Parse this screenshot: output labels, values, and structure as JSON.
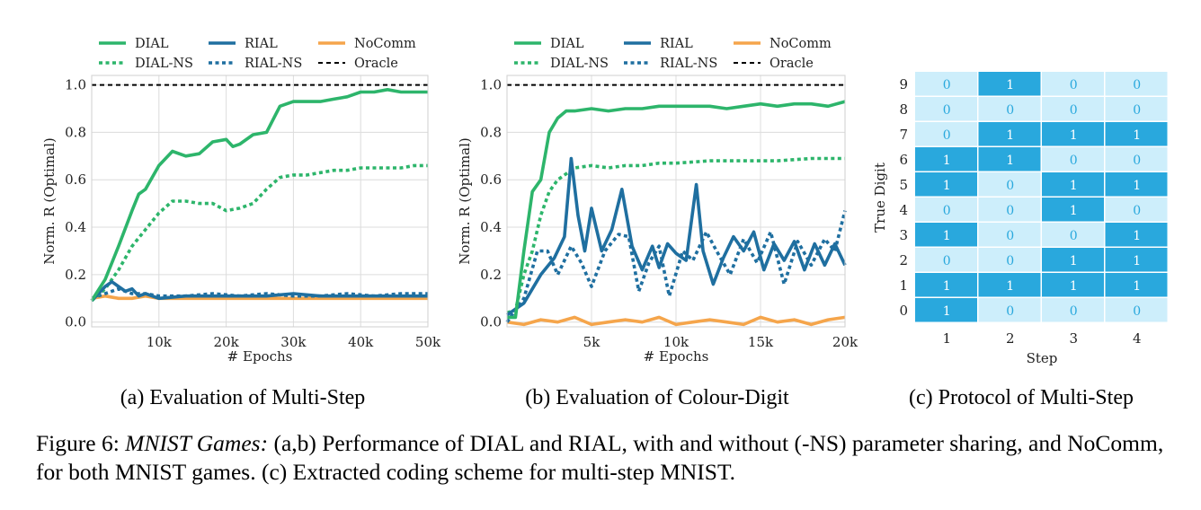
{
  "figure": {
    "caption_label": "Figure 6:",
    "caption_title": "MNIST Games:",
    "caption_body": " (a,b) Performance of DIAL and RIAL, with and without (-NS) parameter sharing, and NoComm, for both MNIST games. (c) Extracted coding scheme for multi-step MNIST."
  },
  "colors": {
    "DIAL": "#2db56b",
    "RIAL": "#1f6fa0",
    "NoComm": "#f5a54b",
    "Oracle": "#000000",
    "grid": "#dcdcdc",
    "heat_on": "#29a8dd",
    "heat_off": "#cdeefb",
    "text_on": "#ffffff",
    "text_off": "#29a8dd"
  },
  "chart_data": [
    {
      "type": "line",
      "subtitle": "(a) Evaluation of Multi-Step",
      "xlabel": "# Epochs",
      "ylabel": "Norm. R (Optimal)",
      "xlim": [
        0,
        50000
      ],
      "ylim": [
        -0.02,
        1.04
      ],
      "xticks": [
        10000,
        20000,
        30000,
        40000,
        50000
      ],
      "xtick_labels": [
        "10k",
        "20k",
        "30k",
        "40k",
        "50k"
      ],
      "yticks": [
        0.0,
        0.2,
        0.4,
        0.6,
        0.8,
        1.0
      ],
      "ytick_labels": [
        "0.0",
        "0.2",
        "0.4",
        "0.6",
        "0.8",
        "1.0"
      ],
      "grid": true,
      "legend": [
        "DIAL",
        "RIAL",
        "NoComm",
        "DIAL-NS",
        "RIAL-NS",
        "Oracle"
      ],
      "series": [
        {
          "name": "DIAL",
          "style": "solid",
          "color": "DIAL",
          "x": [
            0,
            2000,
            4000,
            6000,
            7000,
            8000,
            10000,
            12000,
            14000,
            16000,
            18000,
            20000,
            21000,
            22000,
            24000,
            26000,
            28000,
            30000,
            32000,
            34000,
            36000,
            38000,
            40000,
            42000,
            44000,
            46000,
            48000,
            50000
          ],
          "y": [
            0.09,
            0.18,
            0.32,
            0.47,
            0.54,
            0.56,
            0.66,
            0.72,
            0.7,
            0.71,
            0.76,
            0.77,
            0.74,
            0.75,
            0.79,
            0.8,
            0.91,
            0.93,
            0.93,
            0.93,
            0.94,
            0.95,
            0.97,
            0.97,
            0.98,
            0.97,
            0.97,
            0.97
          ]
        },
        {
          "name": "DIAL-NS",
          "style": "dotted",
          "color": "DIAL",
          "x": [
            0,
            2000,
            4000,
            6000,
            8000,
            10000,
            12000,
            14000,
            16000,
            18000,
            20000,
            22000,
            24000,
            26000,
            28000,
            30000,
            32000,
            34000,
            36000,
            38000,
            40000,
            42000,
            44000,
            46000,
            48000,
            50000
          ],
          "y": [
            0.09,
            0.14,
            0.22,
            0.32,
            0.39,
            0.46,
            0.51,
            0.51,
            0.5,
            0.5,
            0.47,
            0.48,
            0.5,
            0.56,
            0.61,
            0.62,
            0.62,
            0.63,
            0.64,
            0.64,
            0.65,
            0.65,
            0.65,
            0.65,
            0.66,
            0.66
          ]
        },
        {
          "name": "RIAL",
          "style": "solid",
          "color": "RIAL",
          "x": [
            0,
            2000,
            3000,
            4000,
            5000,
            6000,
            7000,
            8000,
            10000,
            14000,
            18000,
            22000,
            26000,
            30000,
            34000,
            38000,
            42000,
            46000,
            50000
          ],
          "y": [
            0.09,
            0.15,
            0.17,
            0.15,
            0.13,
            0.14,
            0.11,
            0.12,
            0.1,
            0.11,
            0.11,
            0.11,
            0.11,
            0.12,
            0.11,
            0.11,
            0.11,
            0.11,
            0.11
          ]
        },
        {
          "name": "RIAL-NS",
          "style": "dotted",
          "color": "RIAL",
          "x": [
            0,
            2000,
            4000,
            6000,
            8000,
            10000,
            14000,
            18000,
            22000,
            26000,
            30000,
            34000,
            38000,
            42000,
            46000,
            50000
          ],
          "y": [
            0.1,
            0.12,
            0.14,
            0.12,
            0.12,
            0.11,
            0.11,
            0.12,
            0.11,
            0.12,
            0.11,
            0.11,
            0.12,
            0.11,
            0.12,
            0.12
          ]
        },
        {
          "name": "NoComm",
          "style": "solid",
          "color": "NoComm",
          "x": [
            0,
            2000,
            4000,
            6000,
            8000,
            10000,
            14000,
            18000,
            22000,
            26000,
            30000,
            34000,
            38000,
            42000,
            46000,
            50000
          ],
          "y": [
            0.1,
            0.11,
            0.1,
            0.1,
            0.11,
            0.1,
            0.1,
            0.1,
            0.1,
            0.1,
            0.1,
            0.1,
            0.1,
            0.1,
            0.1,
            0.1
          ]
        },
        {
          "name": "Oracle",
          "style": "dashed",
          "color": "Oracle",
          "x": [
            0,
            50000
          ],
          "y": [
            1.0,
            1.0
          ]
        }
      ]
    },
    {
      "type": "line",
      "subtitle": "(b) Evaluation of Colour-Digit",
      "xlabel": "# Epochs",
      "ylabel": "Norm. R (Optimal)",
      "xlim": [
        0,
        20000
      ],
      "ylim": [
        -0.02,
        1.04
      ],
      "xticks": [
        5000,
        10000,
        15000,
        20000
      ],
      "xtick_labels": [
        "5k",
        "10k",
        "15k",
        "20k"
      ],
      "yticks": [
        0.0,
        0.2,
        0.4,
        0.6,
        0.8,
        1.0
      ],
      "ytick_labels": [
        "0.0",
        "0.2",
        "0.4",
        "0.6",
        "0.8",
        "1.0"
      ],
      "grid": true,
      "legend": [
        "DIAL",
        "RIAL",
        "NoComm",
        "DIAL-NS",
        "RIAL-NS",
        "Oracle"
      ],
      "series": [
        {
          "name": "DIAL",
          "style": "solid",
          "color": "DIAL",
          "x": [
            0,
            500,
            1000,
            1500,
            2000,
            2500,
            3000,
            3500,
            4000,
            5000,
            6000,
            7000,
            8000,
            9000,
            10000,
            11000,
            12000,
            13000,
            14000,
            15000,
            16000,
            17000,
            18000,
            19000,
            20000
          ],
          "y": [
            0.02,
            0.02,
            0.3,
            0.55,
            0.6,
            0.8,
            0.86,
            0.89,
            0.89,
            0.9,
            0.89,
            0.9,
            0.9,
            0.91,
            0.91,
            0.91,
            0.91,
            0.9,
            0.91,
            0.92,
            0.91,
            0.92,
            0.92,
            0.91,
            0.93
          ]
        },
        {
          "name": "DIAL-NS",
          "style": "dotted",
          "color": "DIAL",
          "x": [
            0,
            500,
            1000,
            1500,
            2000,
            2500,
            3000,
            4000,
            5000,
            6000,
            7000,
            8000,
            9000,
            10000,
            12000,
            14000,
            16000,
            18000,
            20000
          ],
          "y": [
            0.04,
            0.05,
            0.2,
            0.3,
            0.45,
            0.55,
            0.6,
            0.65,
            0.66,
            0.65,
            0.66,
            0.66,
            0.67,
            0.67,
            0.68,
            0.68,
            0.68,
            0.69,
            0.69
          ]
        },
        {
          "name": "RIAL",
          "style": "solid",
          "color": "RIAL",
          "x": [
            0,
            1000,
            2000,
            2800,
            3400,
            3800,
            4200,
            4600,
            5000,
            5600,
            6200,
            6800,
            7400,
            8000,
            8600,
            9000,
            9500,
            10000,
            10600,
            11200,
            11600,
            12200,
            12800,
            13400,
            14000,
            14600,
            15200,
            15800,
            16400,
            17000,
            17600,
            18200,
            18800,
            19400,
            20000
          ],
          "y": [
            0.03,
            0.08,
            0.2,
            0.27,
            0.36,
            0.69,
            0.45,
            0.3,
            0.48,
            0.3,
            0.39,
            0.56,
            0.32,
            0.22,
            0.32,
            0.23,
            0.33,
            0.29,
            0.26,
            0.58,
            0.3,
            0.16,
            0.27,
            0.36,
            0.3,
            0.38,
            0.22,
            0.33,
            0.26,
            0.34,
            0.22,
            0.33,
            0.24,
            0.33,
            0.24
          ]
        },
        {
          "name": "RIAL-NS",
          "style": "dotted",
          "color": "RIAL",
          "x": [
            0,
            1000,
            1800,
            2400,
            3000,
            3800,
            4400,
            5000,
            5800,
            6600,
            7200,
            7800,
            8400,
            9000,
            9600,
            10400,
            11000,
            11800,
            12400,
            13200,
            14000,
            14800,
            15600,
            16400,
            17200,
            18000,
            18800,
            19400,
            20000
          ],
          "y": [
            0.0,
            0.1,
            0.3,
            0.3,
            0.2,
            0.32,
            0.25,
            0.15,
            0.3,
            0.37,
            0.36,
            0.13,
            0.25,
            0.32,
            0.11,
            0.3,
            0.26,
            0.38,
            0.3,
            0.2,
            0.35,
            0.25,
            0.38,
            0.16,
            0.34,
            0.24,
            0.35,
            0.3,
            0.47
          ]
        },
        {
          "name": "NoComm",
          "style": "solid",
          "color": "NoComm",
          "x": [
            0,
            1000,
            2000,
            3000,
            4000,
            5000,
            6000,
            7000,
            8000,
            9000,
            10000,
            11000,
            12000,
            13000,
            14000,
            15000,
            16000,
            17000,
            18000,
            19000,
            20000
          ],
          "y": [
            0.0,
            -0.01,
            0.01,
            0.0,
            0.02,
            -0.01,
            0.0,
            0.01,
            0.0,
            0.02,
            -0.01,
            0.0,
            0.01,
            0.0,
            -0.01,
            0.02,
            0.0,
            0.01,
            -0.01,
            0.01,
            0.02
          ]
        },
        {
          "name": "Oracle",
          "style": "dashed",
          "color": "Oracle",
          "x": [
            0,
            20000
          ],
          "y": [
            1.0,
            1.0
          ]
        }
      ]
    },
    {
      "type": "heatmap",
      "subtitle": "(c) Protocol of Multi-Step",
      "xlabel": "Step",
      "ylabel": "True Digit",
      "columns": [
        "1",
        "2",
        "3",
        "4"
      ],
      "rows": [
        "9",
        "8",
        "7",
        "6",
        "5",
        "4",
        "3",
        "2",
        "1",
        "0"
      ],
      "values": [
        [
          0,
          1,
          0,
          0
        ],
        [
          0,
          0,
          0,
          0
        ],
        [
          0,
          1,
          1,
          1
        ],
        [
          1,
          1,
          0,
          0
        ],
        [
          1,
          0,
          1,
          1
        ],
        [
          0,
          0,
          1,
          0
        ],
        [
          1,
          0,
          0,
          1
        ],
        [
          0,
          0,
          1,
          1
        ],
        [
          1,
          1,
          1,
          1
        ],
        [
          1,
          0,
          0,
          0
        ]
      ]
    }
  ]
}
